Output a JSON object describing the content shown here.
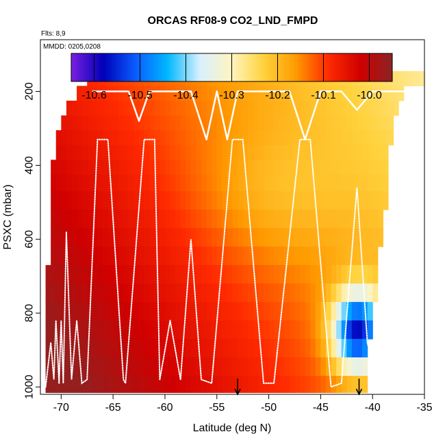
{
  "chart_data": {
    "type": "heatmap",
    "title": "ORCAS RF08-9 CO2_LND_FMPD",
    "subtitle": "Flts: 8,9",
    "annotation": "MMDD: 0205,0208",
    "xlabel": "Latitude (deg N)",
    "ylabel": "PSXC (mbar)",
    "xlim": [
      -72,
      -35
    ],
    "ylim": [
      1020,
      60
    ],
    "x_ticks": [
      -70,
      -65,
      -60,
      -55,
      -50,
      -45,
      -40,
      -35
    ],
    "x_tick_labels": [
      "-70",
      "-65",
      "-60",
      "-55",
      "-50",
      "-45",
      "-40",
      "-35"
    ],
    "y_ticks": [
      200,
      400,
      600,
      800,
      1000
    ],
    "y_tick_labels": [
      "200",
      "400",
      "600",
      "800",
      "1000"
    ],
    "colorbar": {
      "range": [
        -10.65,
        -9.95
      ],
      "ticks": [
        -10.6,
        -10.5,
        -10.4,
        -10.3,
        -10.2,
        -10.1,
        -10.0
      ],
      "tick_labels": [
        "-10.6",
        "-10.5",
        "-10.4",
        "-10.3",
        "-10.2",
        "-10.1",
        "-10.0"
      ],
      "colors": [
        "#7a1fe0",
        "#0000b8",
        "#0a5cff",
        "#00b8ff",
        "#d8f0ff",
        "#fff4c0",
        "#ffd23c",
        "#ff9a00",
        "#ff2a00",
        "#d00000",
        "#8a2424"
      ]
    },
    "grid": {
      "lat_start": -71.5,
      "lat_end": -38,
      "lat_step": 0.5,
      "pres_levels": [
        165,
        205,
        245,
        285,
        325,
        365,
        405,
        445,
        495,
        545,
        595,
        645,
        695,
        745,
        795,
        845,
        895,
        945,
        995
      ]
    },
    "coverage_south_edge_by_level": [
      -67.5,
      -68.5,
      -69.5,
      -70,
      -70.5,
      -70.5,
      -71,
      -71,
      -71,
      -71,
      -71,
      -71,
      -71.5,
      -71.5,
      -71.5,
      -71.5,
      -71.5,
      -71.5,
      -71.5
    ],
    "coverage_north_edge_by_level": [
      -35,
      -37,
      -37.5,
      -38,
      -38,
      -38.5,
      -38.5,
      -38.5,
      -38.5,
      -39,
      -39,
      -39.5,
      -39.5,
      -39.5,
      -40,
      -40,
      -40.5,
      -40.5,
      -40.5
    ],
    "field_model": "smooth field: high (-9.95) near surface south, decreasing with altitude and northward; low pocket (-10.55) near -41.5 degN, 850 mbar",
    "flight_track_solid": [
      [
        -67,
        200
      ],
      [
        -63.5,
        200
      ],
      [
        -62.5,
        280
      ],
      [
        -61.5,
        200
      ],
      [
        -57.5,
        200
      ],
      [
        -56,
        330
      ],
      [
        -55,
        200
      ],
      [
        -54,
        330
      ],
      [
        -53,
        200
      ],
      [
        -48,
        200
      ],
      [
        -46.5,
        330
      ],
      [
        -45,
        200
      ],
      [
        -43,
        200
      ],
      [
        -41.5,
        250
      ],
      [
        -40,
        200
      ],
      [
        -35,
        200
      ]
    ],
    "flight_track_dotted": [
      [
        -71.5,
        1000
      ],
      [
        -71,
        880
      ],
      [
        -70.7,
        980
      ],
      [
        -70.5,
        820
      ],
      [
        -70.2,
        990
      ],
      [
        -70,
        820
      ],
      [
        -69.8,
        990
      ],
      [
        -69.5,
        580
      ],
      [
        -69,
        980
      ],
      [
        -68.5,
        820
      ],
      [
        -68,
        990
      ],
      [
        -67.5,
        980
      ],
      [
        -66.5,
        330
      ],
      [
        -65.5,
        330
      ],
      [
        -64,
        980
      ],
      [
        -63.8,
        990
      ],
      [
        -62,
        330
      ],
      [
        -61,
        330
      ],
      [
        -60.5,
        980
      ],
      [
        -59.5,
        820
      ],
      [
        -58.5,
        980
      ],
      [
        -57.5,
        600
      ],
      [
        -56.5,
        980
      ],
      [
        -55.5,
        990
      ],
      [
        -53.5,
        330
      ],
      [
        -52.5,
        330
      ],
      [
        -50.5,
        990
      ],
      [
        -49.5,
        990
      ],
      [
        -47,
        330
      ],
      [
        -46,
        330
      ],
      [
        -44,
        1000
      ],
      [
        -43,
        990
      ],
      [
        -41.5,
        460
      ],
      [
        -40.5,
        880
      ],
      [
        -39.5,
        990
      ]
    ],
    "arrows_latitude": [
      -53,
      -41.3
    ],
    "arrows_label": ""
  }
}
